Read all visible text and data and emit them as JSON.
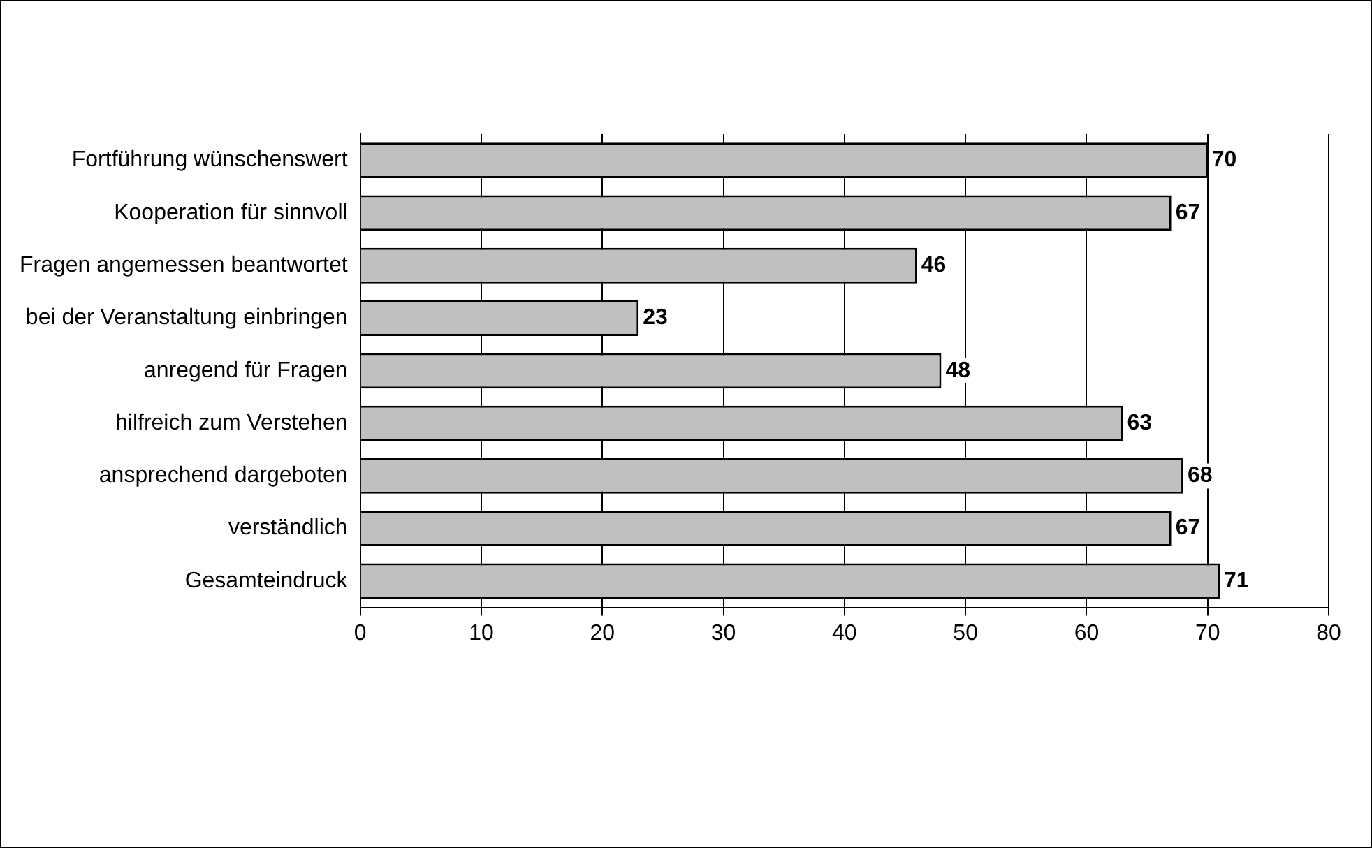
{
  "chart_data": {
    "type": "bar",
    "orientation": "horizontal",
    "categories": [
      "Fortführung wünschenswert",
      "Kooperation für sinnvoll",
      "Fragen angemessen beantwortet",
      "bei der Veranstaltung einbringen",
      "anregend für Fragen",
      "hilfreich zum Verstehen",
      "ansprechend dargeboten",
      "verständlich",
      "Gesamteindruck"
    ],
    "values": [
      70,
      67,
      46,
      23,
      48,
      63,
      68,
      67,
      71
    ],
    "color": "#c0c0c0",
    "xlim": [
      0,
      80
    ],
    "xticks": [
      0,
      10,
      20,
      30,
      40,
      50,
      60,
      70,
      80
    ],
    "grid": "x",
    "legend": false,
    "data_labels": true
  }
}
